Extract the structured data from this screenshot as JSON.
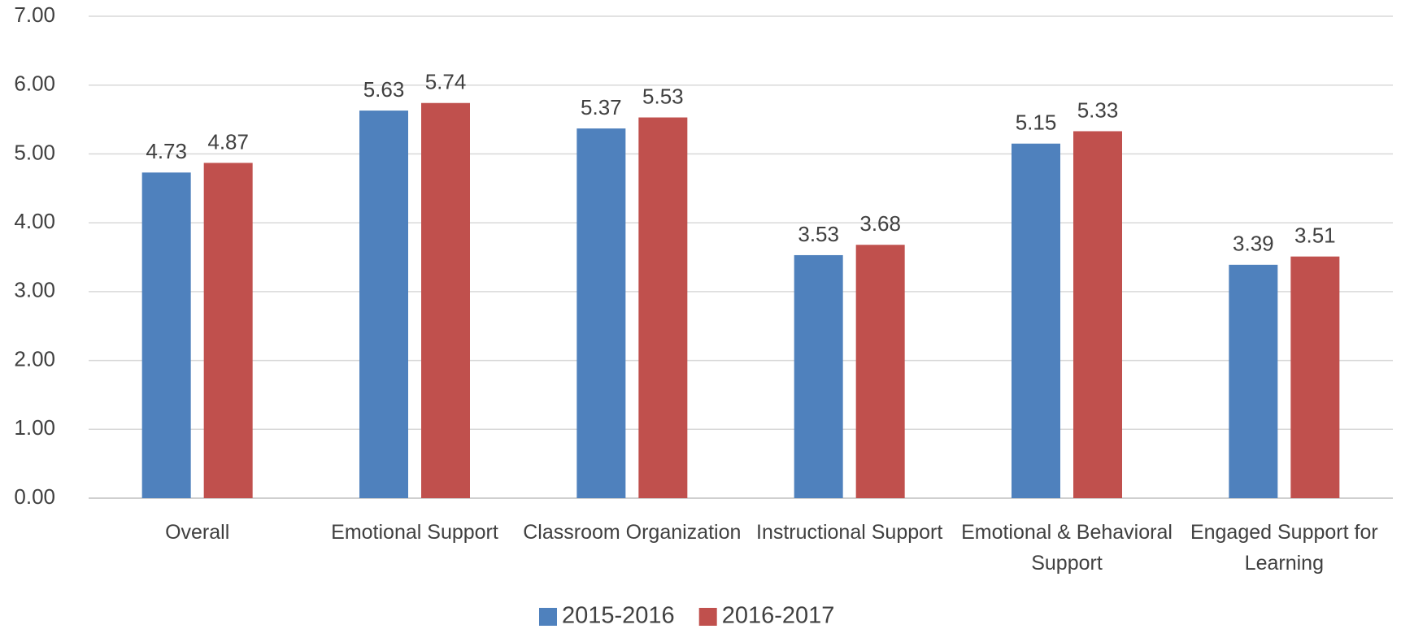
{
  "chart_data": {
    "type": "bar",
    "categories": [
      "Overall",
      "Emotional Support",
      "Classroom Organization",
      "Instructional Support",
      "Emotional & Behavioral Support",
      "Engaged Support for Learning"
    ],
    "series": [
      {
        "name": "2015-2016",
        "color": "#4f81bd",
        "values": [
          4.73,
          5.63,
          5.37,
          3.53,
          5.15,
          3.39
        ]
      },
      {
        "name": "2016-2017",
        "color": "#c0504d",
        "values": [
          4.87,
          5.74,
          5.53,
          3.68,
          5.33,
          3.51
        ]
      }
    ],
    "ylim": [
      0,
      7
    ],
    "yticks": [
      {
        "value": 0,
        "label": "0.00"
      },
      {
        "value": 1,
        "label": "1.00"
      },
      {
        "value": 2,
        "label": "2.00"
      },
      {
        "value": 3,
        "label": "3.00"
      },
      {
        "value": 4,
        "label": "4.00"
      },
      {
        "value": 5,
        "label": "5.00"
      },
      {
        "value": 6,
        "label": "6.00"
      },
      {
        "value": 7,
        "label": "7.00"
      }
    ],
    "grid": true,
    "legend": "bottom"
  }
}
